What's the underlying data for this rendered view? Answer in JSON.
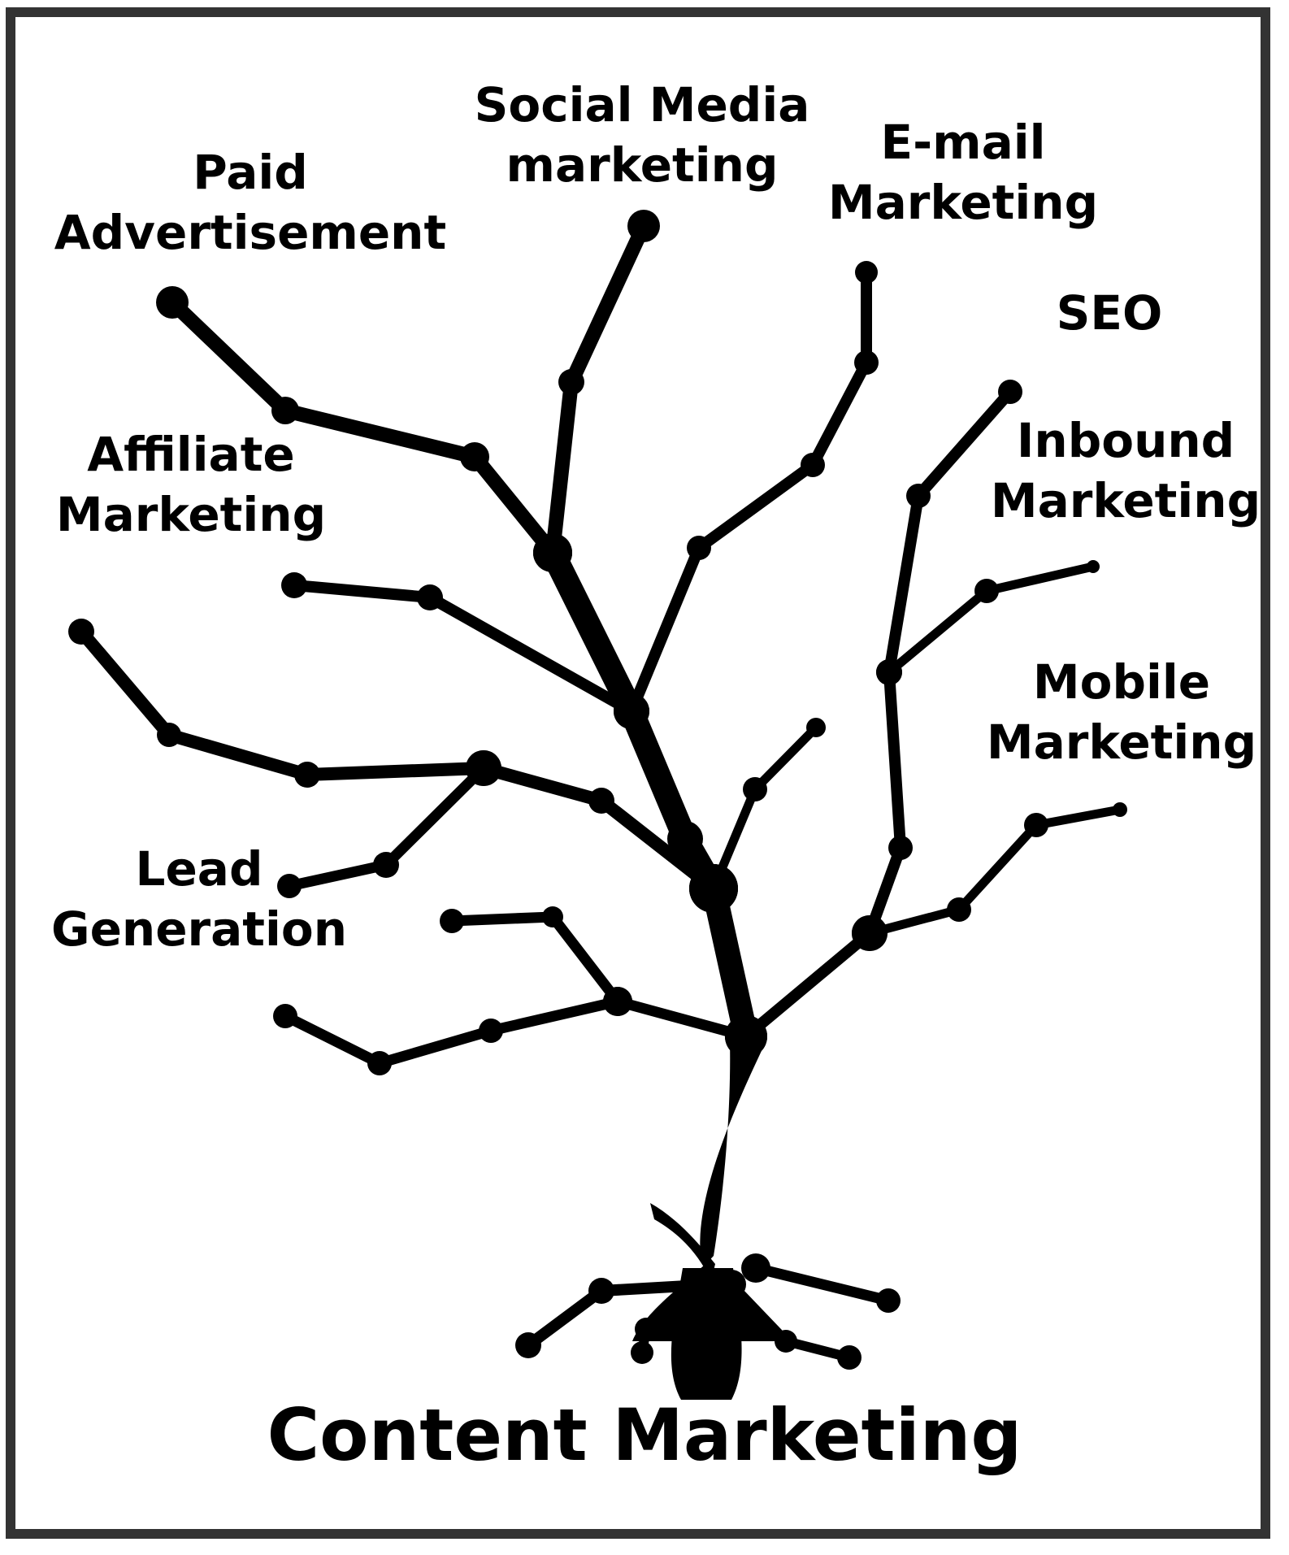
{
  "title": "Content Marketing",
  "branches": [
    {
      "id": "social-media",
      "line1": "Social Media",
      "line2": "marketing"
    },
    {
      "id": "email",
      "line1": "E-mail",
      "line2": "Marketing"
    },
    {
      "id": "paid-ads",
      "line1": "Paid",
      "line2": "Advertisement"
    },
    {
      "id": "seo",
      "line1": "SEO"
    },
    {
      "id": "affiliate",
      "line1": "Affiliate",
      "line2": "Marketing"
    },
    {
      "id": "inbound",
      "line1": "Inbound",
      "line2": "Marketing"
    },
    {
      "id": "mobile",
      "line1": "Mobile",
      "line2": "Marketing"
    },
    {
      "id": "lead-gen",
      "line1": "Lead",
      "line2": "Generation"
    }
  ],
  "colors": {
    "ink": "#000000",
    "frame": "#333333",
    "background": "#ffffff"
  }
}
